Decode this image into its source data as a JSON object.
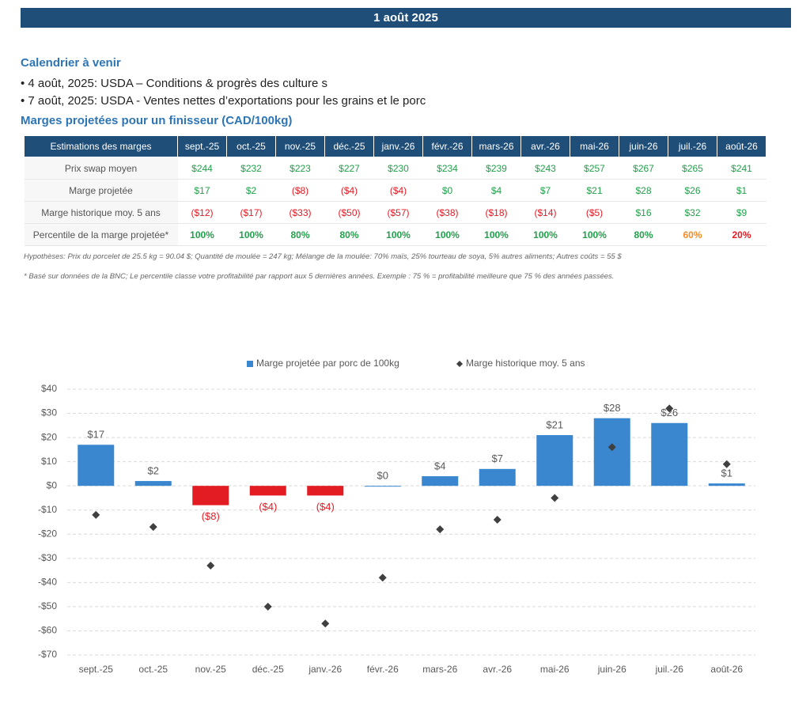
{
  "header": {
    "title": "1 août 2025"
  },
  "calendar": {
    "title": "Calendrier à venir",
    "items": [
      "• 4 août, 2025: USDA – Conditions & progrès des culture s",
      "• 7 août, 2025: USDA - Ventes nettes d’exportations pour les grains et le porc"
    ]
  },
  "table": {
    "title": "Marges projetées pour un finisseur (CAD/100kg)",
    "header": [
      "Estimations des marges",
      "sept.-25",
      "oct.-25",
      "nov.-25",
      "déc.-25",
      "janv.-26",
      "févr.-26",
      "mars-26",
      "avr.-26",
      "mai-26",
      "juin-26",
      "juil.-26",
      "août-26"
    ],
    "rows": [
      {
        "label": "Prix swap moyen",
        "cells": [
          "$244",
          "$232",
          "$223",
          "$227",
          "$230",
          "$234",
          "$239",
          "$243",
          "$257",
          "$267",
          "$265",
          "$241"
        ],
        "colors": [
          "#22a04b",
          "#22a04b",
          "#22a04b",
          "#22a04b",
          "#22a04b",
          "#22a04b",
          "#22a04b",
          "#22a04b",
          "#22a04b",
          "#22a04b",
          "#22a04b",
          "#22a04b"
        ]
      },
      {
        "label": "Marge projetée",
        "cells": [
          "$17",
          "$2",
          "($8)",
          "($4)",
          "($4)",
          "$0",
          "$4",
          "$7",
          "$21",
          "$28",
          "$26",
          "$1"
        ],
        "colors": [
          "#22a04b",
          "#22a04b",
          "#e31b23",
          "#e31b23",
          "#e31b23",
          "#22a04b",
          "#22a04b",
          "#22a04b",
          "#22a04b",
          "#22a04b",
          "#22a04b",
          "#22a04b"
        ]
      },
      {
        "label": "Marge historique moy. 5 ans",
        "cells": [
          "($12)",
          "($17)",
          "($33)",
          "($50)",
          "($57)",
          "($38)",
          "($18)",
          "($14)",
          "($5)",
          "$16",
          "$32",
          "$9"
        ],
        "colors": [
          "#e31b23",
          "#e31b23",
          "#e31b23",
          "#e31b23",
          "#e31b23",
          "#e31b23",
          "#e31b23",
          "#e31b23",
          "#e31b23",
          "#22a04b",
          "#22a04b",
          "#22a04b"
        ]
      },
      {
        "label": "Percentile de la marge projetée*",
        "cells": [
          "100%",
          "100%",
          "80%",
          "80%",
          "100%",
          "100%",
          "100%",
          "100%",
          "100%",
          "80%",
          "60%",
          "20%"
        ],
        "colors": [
          "#22a04b",
          "#22a04b",
          "#22a04b",
          "#22a04b",
          "#22a04b",
          "#22a04b",
          "#22a04b",
          "#22a04b",
          "#22a04b",
          "#22a04b",
          "#f28c28",
          "#e31b23"
        ]
      }
    ]
  },
  "notes": [
    "Hypothèses: Prix du porcelet de 25.5 kg = 90.04 $; Quantité de moulée = 247 kg; Mélange de la moulée: 70% maïs, 25% tourteau de soya, 5% autres aliments; Autres coûts = 55 $",
    "* Basé sur données de la BNC; Le percentile classe votre profitabilité par rapport aux 5 dernières années. Exemple : 75 % = profitabilité meilleure que 75 % des années passées."
  ],
  "chart_data": {
    "type": "bar",
    "categories": [
      "sept.-25",
      "oct.-25",
      "nov.-25",
      "déc.-25",
      "janv.-26",
      "févr.-26",
      "mars-26",
      "avr.-26",
      "mai-26",
      "juin-26",
      "juil.-26",
      "août-26"
    ],
    "series": [
      {
        "name": "Marge projetée par porc de 100kg",
        "color": "#3a87d0",
        "negative_color": "#e31b23",
        "values": [
          17,
          2,
          -8,
          -4,
          -4,
          0,
          4,
          7,
          21,
          28,
          26,
          1
        ],
        "value_labels": [
          "$17",
          "$2",
          "($8)",
          "($4)",
          "($4)",
          "$0",
          "$4",
          "$7",
          "$21",
          "$28",
          "$26",
          "$1"
        ]
      },
      {
        "name": "Marge historique moy. 5 ans",
        "type": "scatter",
        "color": "#404040",
        "values": [
          -12,
          -17,
          -33,
          -50,
          -57,
          -38,
          -18,
          -14,
          -5,
          16,
          32,
          9
        ]
      }
    ],
    "ylim": [
      -70,
      40
    ],
    "yticks": [
      {
        "value": 40,
        "label": "$40"
      },
      {
        "value": 30,
        "label": "$30"
      },
      {
        "value": 20,
        "label": "$20"
      },
      {
        "value": 10,
        "label": "$10"
      },
      {
        "value": 0,
        "label": "$0"
      },
      {
        "value": -10,
        "label": "-$10"
      },
      {
        "value": -20,
        "label": "-$20"
      },
      {
        "value": -30,
        "label": "-$30"
      },
      {
        "value": -40,
        "label": "-$40"
      },
      {
        "value": -50,
        "label": "-$50"
      },
      {
        "value": -60,
        "label": "-$60"
      },
      {
        "value": -70,
        "label": "-$70"
      }
    ],
    "grid": true
  }
}
